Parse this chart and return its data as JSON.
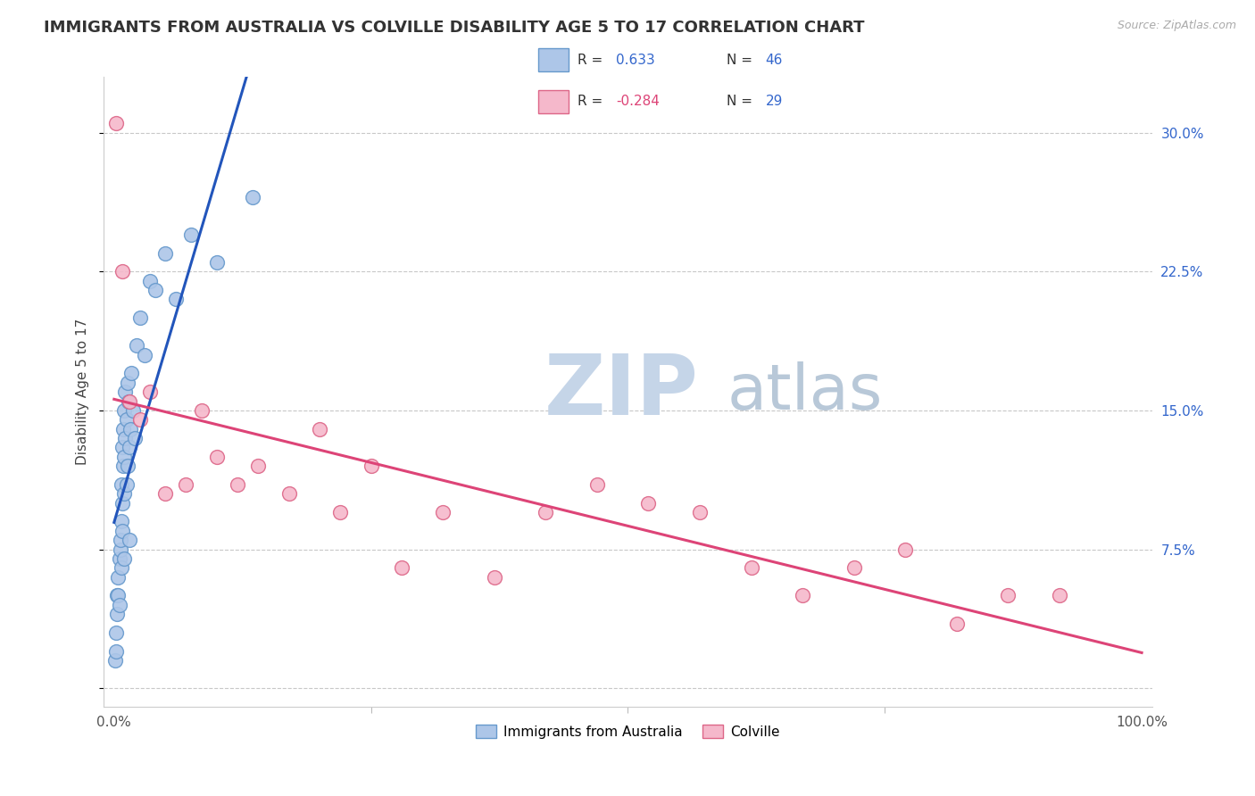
{
  "title": "IMMIGRANTS FROM AUSTRALIA VS COLVILLE DISABILITY AGE 5 TO 17 CORRELATION CHART",
  "source_text": "Source: ZipAtlas.com",
  "ylabel": "Disability Age 5 to 17",
  "xlim": [
    -1.0,
    101.0
  ],
  "ylim": [
    -1.0,
    33.0
  ],
  "yticks": [
    0.0,
    7.5,
    15.0,
    22.5,
    30.0
  ],
  "yticklabels": [
    "",
    "7.5%",
    "15.0%",
    "22.5%",
    "30.0%"
  ],
  "grid_color": "#c8c8c8",
  "background_color": "#ffffff",
  "series1": {
    "name": "Immigrants from Australia",
    "color": "#adc6e8",
    "edge_color": "#6699cc",
    "R": 0.633,
    "N": 46,
    "line_color": "#2255bb",
    "x": [
      0.1,
      0.2,
      0.2,
      0.3,
      0.3,
      0.4,
      0.4,
      0.5,
      0.5,
      0.6,
      0.6,
      0.7,
      0.7,
      0.7,
      0.8,
      0.8,
      0.8,
      0.9,
      0.9,
      1.0,
      1.0,
      1.0,
      1.0,
      1.1,
      1.1,
      1.2,
      1.2,
      1.3,
      1.3,
      1.4,
      1.5,
      1.5,
      1.6,
      1.7,
      1.8,
      2.0,
      2.2,
      2.5,
      3.0,
      3.5,
      4.0,
      5.0,
      6.0,
      7.5,
      10.0,
      13.5
    ],
    "y": [
      1.5,
      2.0,
      3.0,
      4.0,
      5.0,
      5.0,
      6.0,
      4.5,
      7.0,
      7.5,
      8.0,
      6.5,
      9.0,
      11.0,
      8.5,
      10.0,
      13.0,
      12.0,
      14.0,
      7.0,
      10.5,
      12.5,
      15.0,
      13.5,
      16.0,
      11.0,
      14.5,
      12.0,
      16.5,
      15.5,
      8.0,
      13.0,
      14.0,
      17.0,
      15.0,
      13.5,
      18.5,
      20.0,
      18.0,
      22.0,
      21.5,
      23.5,
      21.0,
      24.5,
      23.0,
      26.5
    ]
  },
  "series2": {
    "name": "Colville",
    "color": "#f5b8cb",
    "edge_color": "#dd6688",
    "R": -0.284,
    "N": 29,
    "line_color": "#dd4477",
    "x": [
      0.2,
      0.8,
      1.5,
      2.5,
      3.5,
      5.0,
      7.0,
      8.5,
      10.0,
      12.0,
      14.0,
      17.0,
      20.0,
      22.0,
      25.0,
      28.0,
      32.0,
      37.0,
      42.0,
      47.0,
      52.0,
      57.0,
      62.0,
      67.0,
      72.0,
      77.0,
      82.0,
      87.0,
      92.0
    ],
    "y": [
      30.5,
      22.5,
      15.5,
      14.5,
      16.0,
      10.5,
      11.0,
      15.0,
      12.5,
      11.0,
      12.0,
      10.5,
      14.0,
      9.5,
      12.0,
      6.5,
      9.5,
      6.0,
      9.5,
      11.0,
      10.0,
      9.5,
      6.5,
      5.0,
      6.5,
      7.5,
      3.5,
      5.0,
      5.0
    ]
  },
  "legend": {
    "R1_color": "#3366cc",
    "R2_color": "#dd4477",
    "N_color": "#3366cc",
    "box_color1": "#adc6e8",
    "box_color2": "#f5b8cb",
    "box_edge1": "#6699cc",
    "box_edge2": "#dd6688"
  },
  "watermark_zip": "ZIP",
  "watermark_atlas": "atlas",
  "watermark_color_zip": "#c5d5e8",
  "watermark_color_atlas": "#b8c8d8"
}
